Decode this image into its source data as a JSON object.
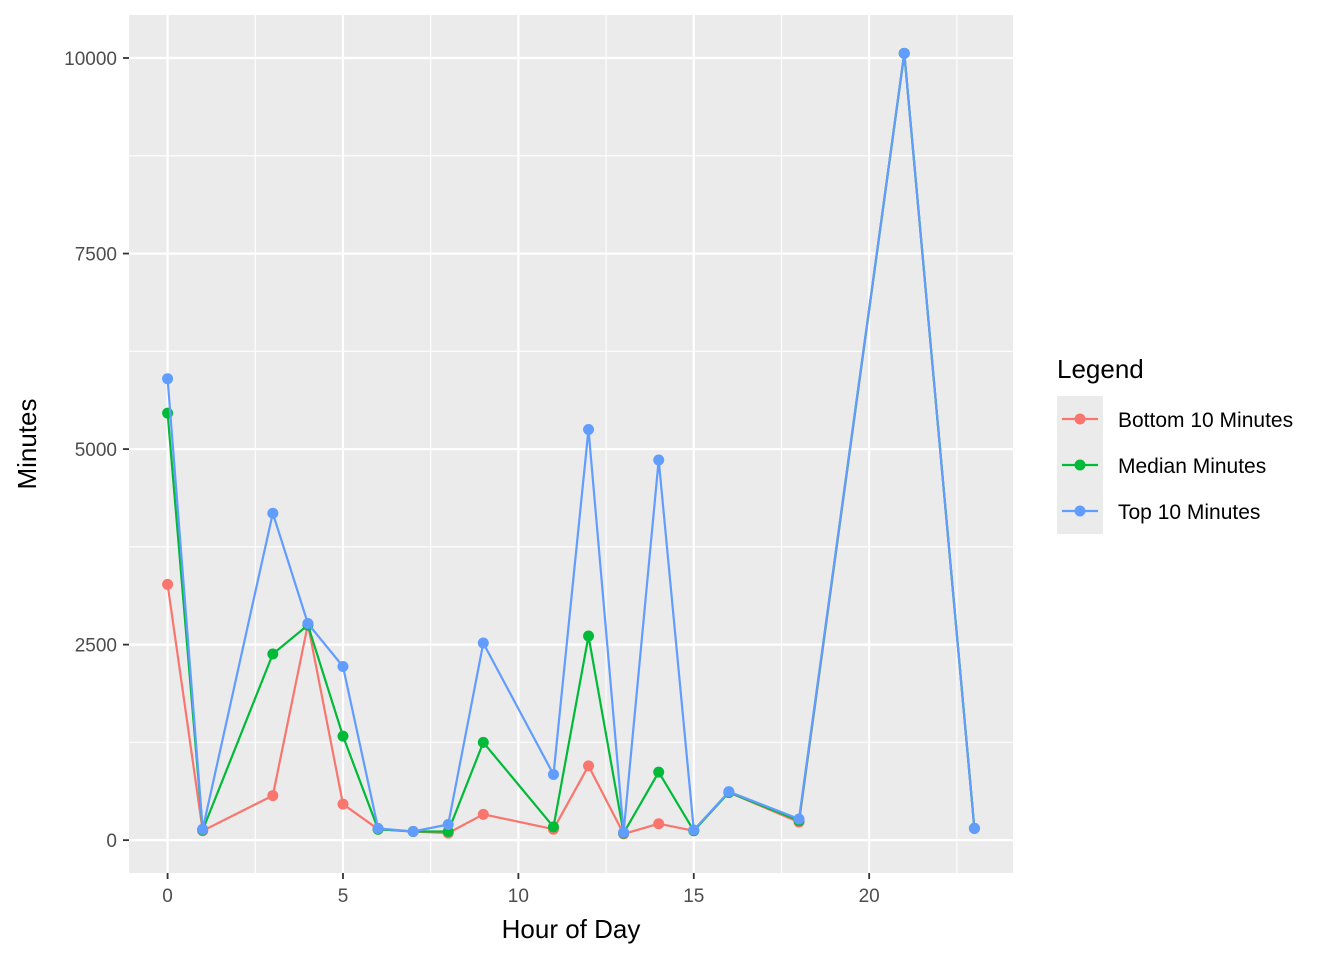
{
  "chart_data": {
    "type": "line",
    "xlabel": "Hour of Day",
    "ylabel": "Minutes",
    "xlim": [
      -1.1,
      24.1
    ],
    "ylim": [
      -420,
      10550
    ],
    "x_ticks": [
      0,
      5,
      10,
      15,
      20
    ],
    "y_ticks": [
      0,
      2500,
      5000,
      7500,
      10000
    ],
    "x_tick_labels": [
      "0",
      "5",
      "10",
      "15",
      "20"
    ],
    "y_tick_labels": [
      "0",
      "2500",
      "5000",
      "7500",
      "10000"
    ],
    "grid": true,
    "legend": {
      "title": "Legend",
      "position": "right"
    },
    "series": [
      {
        "name": "Bottom 10 Minutes",
        "color": "#F8766D",
        "points": [
          [
            0,
            3270
          ],
          [
            1,
            120
          ],
          [
            3,
            570
          ],
          [
            4,
            2760
          ],
          [
            5,
            460
          ],
          [
            6,
            140
          ],
          [
            7,
            110
          ],
          [
            8,
            90
          ],
          [
            9,
            330
          ],
          [
            11,
            140
          ],
          [
            12,
            950
          ],
          [
            13,
            80
          ],
          [
            14,
            210
          ],
          [
            15,
            120
          ],
          [
            16,
            610
          ],
          [
            18,
            230
          ],
          [
            21,
            10060
          ],
          [
            23,
            150
          ]
        ]
      },
      {
        "name": "Median Minutes",
        "color": "#00BA38",
        "points": [
          [
            0,
            5460
          ],
          [
            1,
            130
          ],
          [
            3,
            2380
          ],
          [
            4,
            2750
          ],
          [
            5,
            1330
          ],
          [
            6,
            140
          ],
          [
            7,
            110
          ],
          [
            8,
            110
          ],
          [
            9,
            1250
          ],
          [
            11,
            170
          ],
          [
            12,
            2610
          ],
          [
            13,
            90
          ],
          [
            14,
            870
          ],
          [
            15,
            120
          ],
          [
            16,
            610
          ],
          [
            18,
            250
          ],
          [
            21,
            10060
          ],
          [
            23,
            150
          ]
        ]
      },
      {
        "name": "Top 10 Minutes",
        "color": "#619CFF",
        "points": [
          [
            0,
            5900
          ],
          [
            1,
            140
          ],
          [
            3,
            4180
          ],
          [
            4,
            2770
          ],
          [
            5,
            2220
          ],
          [
            6,
            150
          ],
          [
            7,
            110
          ],
          [
            8,
            200
          ],
          [
            9,
            2520
          ],
          [
            11,
            840
          ],
          [
            12,
            5250
          ],
          [
            13,
            100
          ],
          [
            14,
            4860
          ],
          [
            15,
            130
          ],
          [
            16,
            620
          ],
          [
            18,
            270
          ],
          [
            21,
            10060
          ],
          [
            23,
            150
          ]
        ]
      }
    ]
  }
}
